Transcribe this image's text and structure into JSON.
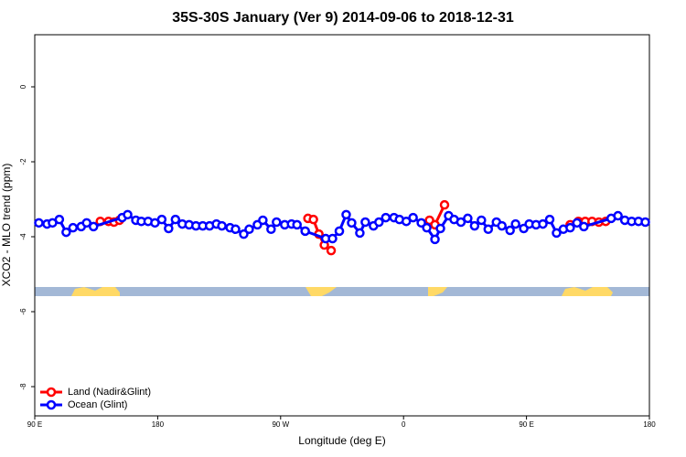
{
  "chart_data": {
    "type": "line",
    "title": "35S-30S January (Ver 9)   2014-09-06 to 2018-12-31",
    "xlabel": "Longitude (deg E)",
    "ylabel": "XCO2 - MLO trend (ppm)",
    "xlim": [
      90,
      540
    ],
    "ylim": [
      -8.78,
      1.39
    ],
    "xticks": [
      {
        "value": 90,
        "label": "90 E"
      },
      180,
      {
        "value": 270,
        "label": "90 W"
      },
      {
        "value": 360,
        "label": "0"
      },
      {
        "value": 450,
        "label": "90 E"
      },
      {
        "value": 540,
        "label": "180"
      }
    ],
    "yticks": [
      0,
      -2,
      -4,
      -6,
      -8
    ],
    "legend": "bottomleft",
    "series": [
      {
        "name": "Land (Nadir&Glint)",
        "color": "#ff0000",
        "x": [
          138,
          144,
          148,
          152,
          null,
          290,
          294,
          298,
          302,
          307,
          null,
          379,
          383,
          390,
          null,
          482,
          488,
          493,
          498,
          503,
          508
        ],
        "values": [
          -3.59,
          -3.59,
          -3.61,
          -3.56,
          null,
          -3.51,
          -3.54,
          -3.93,
          -4.22,
          -4.37,
          null,
          -3.56,
          -3.68,
          -3.15,
          null,
          -3.68,
          -3.59,
          -3.59,
          -3.59,
          -3.61,
          -3.59
        ]
      },
      {
        "name": "Ocean (Glint)",
        "color": "#0000ff",
        "x": [
          93,
          99,
          103,
          108,
          113,
          118,
          124,
          128,
          133,
          154,
          158,
          164,
          168,
          173,
          178,
          183,
          188,
          193,
          198,
          203,
          208,
          213,
          218,
          223,
          227,
          233,
          237,
          243,
          247,
          253,
          257,
          263,
          267,
          273,
          278,
          282,
          288,
          303,
          308,
          313,
          318,
          322,
          328,
          332,
          338,
          342,
          347,
          353,
          357,
          362,
          367,
          373,
          377,
          383,
          387,
          393,
          397,
          402,
          407,
          412,
          417,
          422,
          428,
          432,
          438,
          442,
          448,
          452,
          457,
          462,
          467,
          472,
          477,
          482,
          487,
          492,
          512,
          517,
          522,
          527,
          532,
          537
        ],
        "values": [
          -3.63,
          -3.66,
          -3.63,
          -3.54,
          -3.88,
          -3.76,
          -3.73,
          -3.63,
          -3.73,
          -3.49,
          -3.41,
          -3.56,
          -3.59,
          -3.59,
          -3.63,
          -3.54,
          -3.78,
          -3.54,
          -3.66,
          -3.68,
          -3.71,
          -3.71,
          -3.71,
          -3.66,
          -3.71,
          -3.76,
          -3.8,
          -3.93,
          -3.8,
          -3.68,
          -3.56,
          -3.8,
          -3.61,
          -3.68,
          -3.66,
          -3.68,
          -3.85,
          -4.05,
          -4.05,
          -3.85,
          -3.41,
          -3.63,
          -3.9,
          -3.61,
          -3.71,
          -3.61,
          -3.49,
          -3.49,
          -3.54,
          -3.59,
          -3.49,
          -3.63,
          -3.76,
          -4.07,
          -3.78,
          -3.44,
          -3.54,
          -3.61,
          -3.51,
          -3.71,
          -3.56,
          -3.8,
          -3.61,
          -3.71,
          -3.83,
          -3.66,
          -3.78,
          -3.66,
          -3.68,
          -3.66,
          -3.54,
          -3.9,
          -3.8,
          -3.76,
          -3.63,
          -3.73,
          -3.51,
          -3.44,
          -3.56,
          -3.59,
          -3.59,
          -3.61
        ]
      }
    ]
  }
}
